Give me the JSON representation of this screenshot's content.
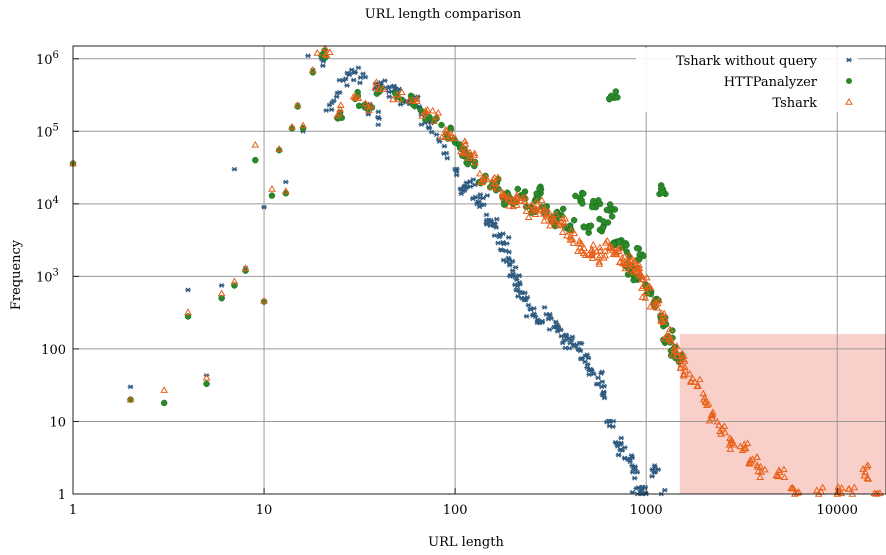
{
  "chart_data": {
    "type": "scatter",
    "title": "URL length comparison",
    "xlabel": "URL length",
    "ylabel": "Frequency",
    "x_scale": "log",
    "y_scale": "log",
    "xlim": [
      1,
      18000
    ],
    "ylim": [
      1,
      1500000
    ],
    "grid": true,
    "legend_position": "top-right",
    "x_ticks": [
      {
        "value": 1,
        "label": "1"
      },
      {
        "value": 10,
        "label": "10"
      },
      {
        "value": 100,
        "label": "100"
      },
      {
        "value": 1000,
        "label": "1000"
      },
      {
        "value": 10000,
        "label": "10000"
      }
    ],
    "y_ticks": [
      {
        "value": 1,
        "label": "1"
      },
      {
        "value": 10,
        "label": "10"
      },
      {
        "value": 100,
        "label": "100"
      },
      {
        "value": 1000,
        "label": "10^3"
      },
      {
        "value": 10000,
        "label": "10^4"
      },
      {
        "value": 100000,
        "label": "10^5"
      },
      {
        "value": 1000000,
        "label": "10^6"
      }
    ],
    "highlight_region": {
      "x": [
        1500,
        18000
      ],
      "y": [
        1,
        160
      ],
      "color": "#f8c8c0"
    },
    "series": [
      {
        "name": "Tshark without query",
        "marker": "asterisk",
        "color": "#2e5a80",
        "points": [
          [
            2,
            30
          ],
          [
            3,
            18
          ],
          [
            4,
            650
          ],
          [
            5,
            43
          ],
          [
            6,
            750
          ],
          [
            7,
            30000
          ],
          [
            8,
            1300
          ],
          [
            9,
            40000
          ],
          [
            10,
            9000
          ],
          [
            11,
            13000
          ],
          [
            12,
            55000
          ],
          [
            13,
            20000
          ],
          [
            14,
            110000
          ],
          [
            15,
            230000
          ],
          [
            16,
            100000
          ],
          [
            17,
            1100000
          ],
          [
            18,
            700000
          ],
          [
            20,
            1000000
          ],
          [
            22,
            230000
          ],
          [
            24,
            300000
          ],
          [
            26,
            500000
          ],
          [
            28,
            600000
          ],
          [
            30,
            650000
          ],
          [
            32,
            550000
          ],
          [
            35,
            200000
          ],
          [
            38,
            380000
          ],
          [
            40,
            150000
          ],
          [
            42,
            400000
          ],
          [
            45,
            350000
          ],
          [
            48,
            420000
          ],
          [
            50,
            350000
          ],
          [
            55,
            250000
          ],
          [
            60,
            300000
          ],
          [
            65,
            220000
          ],
          [
            70,
            150000
          ],
          [
            75,
            130000
          ],
          [
            80,
            90000
          ],
          [
            90,
            50000
          ],
          [
            100,
            30000
          ],
          [
            110,
            15000
          ],
          [
            120,
            20000
          ],
          [
            130,
            10000
          ],
          [
            140,
            12000
          ],
          [
            150,
            6000
          ],
          [
            160,
            5000
          ],
          [
            170,
            3500
          ],
          [
            180,
            2800
          ],
          [
            190,
            1800
          ],
          [
            200,
            1200
          ],
          [
            210,
            900
          ],
          [
            220,
            600
          ],
          [
            230,
            500
          ],
          [
            250,
            350
          ],
          [
            270,
            250
          ],
          [
            300,
            300
          ],
          [
            330,
            200
          ],
          [
            360,
            150
          ],
          [
            400,
            120
          ],
          [
            440,
            100
          ],
          [
            480,
            80
          ],
          [
            520,
            50
          ],
          [
            560,
            40
          ],
          [
            600,
            25
          ],
          [
            650,
            10
          ],
          [
            700,
            5
          ],
          [
            750,
            4
          ],
          [
            800,
            3
          ],
          [
            850,
            2
          ],
          [
            900,
            1
          ],
          [
            950,
            1
          ],
          [
            1000,
            1
          ],
          [
            1100,
            2
          ],
          [
            1200,
            1
          ]
        ]
      },
      {
        "name": "HTTPanalyzer",
        "marker": "circle",
        "color": "#2a8a2a",
        "points": [
          [
            1,
            36000
          ],
          [
            2,
            20
          ],
          [
            3,
            18
          ],
          [
            4,
            280
          ],
          [
            5,
            33
          ],
          [
            6,
            500
          ],
          [
            7,
            750
          ],
          [
            8,
            1200
          ],
          [
            9,
            40000
          ],
          [
            10,
            450
          ],
          [
            11,
            13000
          ],
          [
            12,
            55000
          ],
          [
            13,
            14000
          ],
          [
            14,
            110000
          ],
          [
            15,
            220000
          ],
          [
            16,
            110000
          ],
          [
            18,
            650000
          ],
          [
            20,
            1100000
          ],
          [
            25,
            180000
          ],
          [
            30,
            280000
          ],
          [
            35,
            200000
          ],
          [
            40,
            350000
          ],
          [
            50,
            300000
          ],
          [
            60,
            260000
          ],
          [
            70,
            180000
          ],
          [
            80,
            150000
          ],
          [
            90,
            90000
          ],
          [
            100,
            70000
          ],
          [
            110,
            55000
          ],
          [
            120,
            40000
          ],
          [
            140,
            20000
          ],
          [
            160,
            18000
          ],
          [
            180,
            12000
          ],
          [
            200,
            10000
          ],
          [
            220,
            13000
          ],
          [
            250,
            9000
          ],
          [
            280,
            14000
          ],
          [
            300,
            8000
          ],
          [
            330,
            6000
          ],
          [
            360,
            7000
          ],
          [
            400,
            5000
          ],
          [
            450,
            12000
          ],
          [
            500,
            4000
          ],
          [
            550,
            10000
          ],
          [
            600,
            5000
          ],
          [
            650,
            8000
          ],
          [
            700,
            3000
          ],
          [
            750,
            2500
          ],
          [
            800,
            1500
          ],
          [
            850,
            1200
          ],
          [
            900,
            900
          ],
          [
            950,
            2000
          ],
          [
            1000,
            700
          ],
          [
            1100,
            400
          ],
          [
            1200,
            250
          ],
          [
            1300,
            150
          ],
          [
            1400,
            100
          ],
          [
            1500,
            80
          ],
          [
            680,
            290000
          ],
          [
            1200,
            16000
          ]
        ]
      },
      {
        "name": "Tshark",
        "marker": "triangle",
        "color": "#e8601a",
        "points": [
          [
            1,
            36000
          ],
          [
            2,
            20
          ],
          [
            3,
            27
          ],
          [
            4,
            320
          ],
          [
            5,
            40
          ],
          [
            6,
            580
          ],
          [
            7,
            850
          ],
          [
            8,
            1300
          ],
          [
            9,
            65000
          ],
          [
            10,
            460
          ],
          [
            11,
            16000
          ],
          [
            12,
            57000
          ],
          [
            13,
            15000
          ],
          [
            14,
            115000
          ],
          [
            15,
            230000
          ],
          [
            16,
            120000
          ],
          [
            18,
            700000
          ],
          [
            19,
            1200000
          ],
          [
            21,
            1150000
          ],
          [
            25,
            200000
          ],
          [
            30,
            300000
          ],
          [
            35,
            220000
          ],
          [
            40,
            380000
          ],
          [
            50,
            320000
          ],
          [
            60,
            270000
          ],
          [
            70,
            190000
          ],
          [
            80,
            160000
          ],
          [
            90,
            100000
          ],
          [
            100,
            80000
          ],
          [
            110,
            60000
          ],
          [
            120,
            45000
          ],
          [
            140,
            22000
          ],
          [
            160,
            19000
          ],
          [
            180,
            13000
          ],
          [
            200,
            11000
          ],
          [
            220,
            11000
          ],
          [
            250,
            8000
          ],
          [
            280,
            9000
          ],
          [
            300,
            7000
          ],
          [
            330,
            6000
          ],
          [
            360,
            5000
          ],
          [
            400,
            3500
          ],
          [
            450,
            2500
          ],
          [
            500,
            2000
          ],
          [
            550,
            2200
          ],
          [
            600,
            1800
          ],
          [
            650,
            2500
          ],
          [
            700,
            2000
          ],
          [
            750,
            1800
          ],
          [
            800,
            1600
          ],
          [
            850,
            1500
          ],
          [
            900,
            1200
          ],
          [
            950,
            900
          ],
          [
            1000,
            600
          ],
          [
            1100,
            400
          ],
          [
            1200,
            250
          ],
          [
            1300,
            150
          ],
          [
            1400,
            100
          ],
          [
            1500,
            70
          ],
          [
            1600,
            50
          ],
          [
            1800,
            35
          ],
          [
            2000,
            20
          ],
          [
            2200,
            12
          ],
          [
            2500,
            8
          ],
          [
            2800,
            5
          ],
          [
            3200,
            4
          ],
          [
            3600,
            3
          ],
          [
            4000,
            2
          ],
          [
            5000,
            2
          ],
          [
            6000,
            1
          ],
          [
            8000,
            1
          ],
          [
            10000,
            1
          ],
          [
            12000,
            1
          ],
          [
            14000,
            2
          ],
          [
            16000,
            1
          ]
        ]
      }
    ]
  }
}
